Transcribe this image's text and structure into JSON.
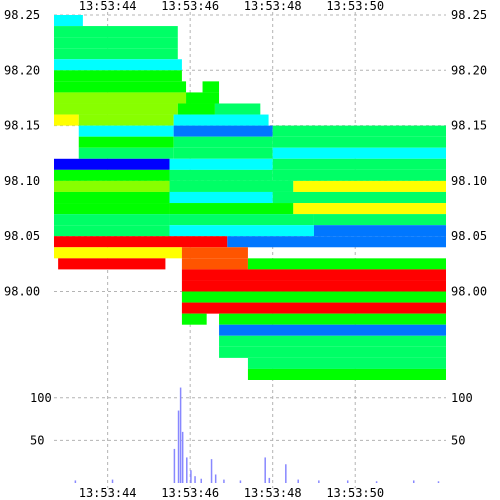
{
  "chart_data": [
    {
      "type": "heatmap",
      "title": "",
      "xlabel": "",
      "ylabel": "",
      "x_tick_labels": [
        "13:53:44",
        "13:53:46",
        "13:53:48",
        "13:53:50"
      ],
      "x_tick_seconds": [
        44,
        46,
        48,
        50
      ],
      "xlim_seconds": [
        42.7,
        52.2
      ],
      "y_ticks": [
        "98.25",
        "98.20",
        "98.15",
        "98.10",
        "98.05",
        "98.00"
      ],
      "ylim": [
        97.92,
        98.25
      ],
      "grid": true,
      "colors": {
        "lowest": "#0000ff",
        "low": "#00ffff",
        "mid": "#00ff00",
        "high": "#ffff00",
        "highest": "#ff0000"
      },
      "color_scale": [
        "#0000ff",
        "#0077ff",
        "#00ffff",
        "#00ff66",
        "#00ff00",
        "#88ff00",
        "#ffff00",
        "#ffaa00",
        "#ff5500",
        "#ff0000"
      ],
      "levels": [
        {
          "price": 98.245,
          "segments": [
            {
              "t0": 42.7,
              "t1": 43.4,
              "v": 0.25
            }
          ]
        },
        {
          "price": 98.235,
          "segments": [
            {
              "t0": 42.7,
              "t1": 45.7,
              "v": 0.3
            }
          ]
        },
        {
          "price": 98.225,
          "segments": [
            {
              "t0": 42.7,
              "t1": 45.7,
              "v": 0.35
            }
          ]
        },
        {
          "price": 98.215,
          "segments": [
            {
              "t0": 42.7,
              "t1": 45.7,
              "v": 0.3
            }
          ]
        },
        {
          "price": 98.205,
          "segments": [
            {
              "t0": 42.7,
              "t1": 45.8,
              "v": 0.25
            }
          ]
        },
        {
          "price": 98.195,
          "segments": [
            {
              "t0": 42.7,
              "t1": 45.8,
              "v": 0.4
            }
          ]
        },
        {
          "price": 98.185,
          "segments": [
            {
              "t0": 42.7,
              "t1": 45.9,
              "v": 0.45
            },
            {
              "t0": 46.3,
              "t1": 46.7,
              "v": 0.45
            }
          ]
        },
        {
          "price": 98.175,
          "segments": [
            {
              "t0": 42.7,
              "t1": 45.9,
              "v": 0.5
            },
            {
              "t0": 45.9,
              "t1": 46.7,
              "v": 0.45
            }
          ]
        },
        {
          "price": 98.165,
          "segments": [
            {
              "t0": 42.7,
              "t1": 45.7,
              "v": 0.55
            },
            {
              "t0": 45.7,
              "t1": 46.6,
              "v": 0.4
            },
            {
              "t0": 46.6,
              "t1": 47.7,
              "v": 0.3
            }
          ]
        },
        {
          "price": 98.155,
          "segments": [
            {
              "t0": 42.7,
              "t1": 43.3,
              "v": 0.7
            },
            {
              "t0": 43.3,
              "t1": 45.6,
              "v": 0.5
            },
            {
              "t0": 45.6,
              "t1": 47.9,
              "v": 0.25
            }
          ]
        },
        {
          "price": 98.145,
          "segments": [
            {
              "t0": 43.3,
              "t1": 45.6,
              "v": 0.2
            },
            {
              "t0": 45.6,
              "t1": 48.0,
              "v": 0.15
            },
            {
              "t0": 48.0,
              "t1": 52.2,
              "v": 0.35
            }
          ]
        },
        {
          "price": 98.135,
          "segments": [
            {
              "t0": 43.3,
              "t1": 45.6,
              "v": 0.45
            },
            {
              "t0": 45.6,
              "t1": 48.0,
              "v": 0.3
            },
            {
              "t0": 48.0,
              "t1": 52.2,
              "v": 0.3
            }
          ]
        },
        {
          "price": 98.125,
          "segments": [
            {
              "t0": 43.3,
              "t1": 45.6,
              "v": 0.3
            },
            {
              "t0": 45.6,
              "t1": 48.0,
              "v": 0.35
            },
            {
              "t0": 48.0,
              "t1": 52.2,
              "v": 0.25
            }
          ]
        },
        {
          "price": 98.115,
          "segments": [
            {
              "t0": 42.7,
              "t1": 45.5,
              "v": 0.05
            },
            {
              "t0": 45.5,
              "t1": 48.0,
              "v": 0.25
            },
            {
              "t0": 48.0,
              "t1": 52.2,
              "v": 0.3
            }
          ]
        },
        {
          "price": 98.105,
          "segments": [
            {
              "t0": 42.7,
              "t1": 45.5,
              "v": 0.4
            },
            {
              "t0": 45.5,
              "t1": 48.0,
              "v": 0.3
            },
            {
              "t0": 48.0,
              "t1": 52.2,
              "v": 0.35
            }
          ]
        },
        {
          "price": 98.095,
          "segments": [
            {
              "t0": 42.7,
              "t1": 45.5,
              "v": 0.55
            },
            {
              "t0": 45.5,
              "t1": 48.5,
              "v": 0.3
            },
            {
              "t0": 48.5,
              "t1": 52.2,
              "v": 0.7
            }
          ]
        },
        {
          "price": 98.085,
          "segments": [
            {
              "t0": 42.7,
              "t1": 45.5,
              "v": 0.45
            },
            {
              "t0": 45.5,
              "t1": 48.0,
              "v": 0.25
            },
            {
              "t0": 48.0,
              "t1": 52.2,
              "v": 0.3
            }
          ]
        },
        {
          "price": 98.075,
          "segments": [
            {
              "t0": 42.7,
              "t1": 45.5,
              "v": 0.4
            },
            {
              "t0": 45.5,
              "t1": 48.5,
              "v": 0.45
            },
            {
              "t0": 48.5,
              "t1": 52.2,
              "v": 0.65
            }
          ]
        },
        {
          "price": 98.065,
          "segments": [
            {
              "t0": 42.7,
              "t1": 45.5,
              "v": 0.35
            },
            {
              "t0": 45.5,
              "t1": 49.0,
              "v": 0.3
            },
            {
              "t0": 49.0,
              "t1": 52.2,
              "v": 0.3
            }
          ]
        },
        {
          "price": 98.055,
          "segments": [
            {
              "t0": 42.7,
              "t1": 45.5,
              "v": 0.3
            },
            {
              "t0": 45.5,
              "t1": 49.0,
              "v": 0.25
            },
            {
              "t0": 49.0,
              "t1": 52.2,
              "v": 0.1
            }
          ]
        },
        {
          "price": 98.045,
          "segments": [
            {
              "t0": 42.7,
              "t1": 46.9,
              "v": 1.0
            },
            {
              "t0": 46.9,
              "t1": 52.2,
              "v": 0.1
            }
          ]
        },
        {
          "price": 98.035,
          "segments": [
            {
              "t0": 42.7,
              "t1": 45.8,
              "v": 0.7
            },
            {
              "t0": 45.8,
              "t1": 47.4,
              "v": 0.85
            }
          ]
        },
        {
          "price": 98.025,
          "segments": [
            {
              "t0": 42.8,
              "t1": 45.4,
              "v": 1.0
            },
            {
              "t0": 45.8,
              "t1": 47.4,
              "v": 0.9
            },
            {
              "t0": 47.4,
              "t1": 52.2,
              "v": 0.45
            }
          ]
        },
        {
          "price": 98.015,
          "segments": [
            {
              "t0": 45.8,
              "t1": 52.2,
              "v": 0.95
            }
          ]
        },
        {
          "price": 98.005,
          "segments": [
            {
              "t0": 45.8,
              "t1": 52.2,
              "v": 1.0
            }
          ]
        },
        {
          "price": 97.995,
          "segments": [
            {
              "t0": 45.8,
              "t1": 52.2,
              "v": 0.45
            }
          ]
        },
        {
          "price": 97.985,
          "segments": [
            {
              "t0": 45.8,
              "t1": 52.2,
              "v": 1.0
            }
          ]
        },
        {
          "price": 97.975,
          "segments": [
            {
              "t0": 45.8,
              "t1": 46.4,
              "v": 0.45
            },
            {
              "t0": 46.7,
              "t1": 52.2,
              "v": 0.4
            }
          ]
        },
        {
          "price": 97.965,
          "segments": [
            {
              "t0": 46.7,
              "t1": 52.2,
              "v": 0.15
            }
          ]
        },
        {
          "price": 97.955,
          "segments": [
            {
              "t0": 46.7,
              "t1": 52.2,
              "v": 0.3
            }
          ]
        },
        {
          "price": 97.945,
          "segments": [
            {
              "t0": 46.7,
              "t1": 52.2,
              "v": 0.3
            }
          ]
        },
        {
          "price": 97.935,
          "segments": [
            {
              "t0": 47.4,
              "t1": 52.2,
              "v": 0.3
            }
          ]
        },
        {
          "price": 97.925,
          "segments": [
            {
              "t0": 47.4,
              "t1": 52.2,
              "v": 0.45
            }
          ]
        }
      ]
    },
    {
      "type": "bar",
      "title": "",
      "xlabel": "",
      "ylabel": "",
      "x_tick_labels": [
        "13:53:44",
        "13:53:46",
        "13:53:48",
        "13:53:50"
      ],
      "x_tick_seconds": [
        44,
        46,
        48,
        50
      ],
      "xlim_seconds": [
        42.7,
        52.2
      ],
      "y_ticks": [
        "100",
        "50"
      ],
      "ylim": [
        0,
        115
      ],
      "grid": true,
      "bar_color": "#8888ff",
      "points": [
        {
          "t": 43.2,
          "v": 3
        },
        {
          "t": 44.1,
          "v": 4
        },
        {
          "t": 45.6,
          "v": 40
        },
        {
          "t": 45.7,
          "v": 85
        },
        {
          "t": 45.75,
          "v": 112
        },
        {
          "t": 45.8,
          "v": 60
        },
        {
          "t": 45.9,
          "v": 30
        },
        {
          "t": 46.0,
          "v": 15
        },
        {
          "t": 46.1,
          "v": 8
        },
        {
          "t": 46.25,
          "v": 5
        },
        {
          "t": 46.5,
          "v": 28
        },
        {
          "t": 46.6,
          "v": 10
        },
        {
          "t": 46.8,
          "v": 4
        },
        {
          "t": 47.2,
          "v": 3
        },
        {
          "t": 47.8,
          "v": 30
        },
        {
          "t": 47.9,
          "v": 6
        },
        {
          "t": 48.3,
          "v": 22
        },
        {
          "t": 48.6,
          "v": 4
        },
        {
          "t": 49.1,
          "v": 3
        },
        {
          "t": 49.8,
          "v": 3
        },
        {
          "t": 50.5,
          "v": 2
        },
        {
          "t": 51.4,
          "v": 3
        },
        {
          "t": 52.0,
          "v": 2
        }
      ]
    }
  ]
}
